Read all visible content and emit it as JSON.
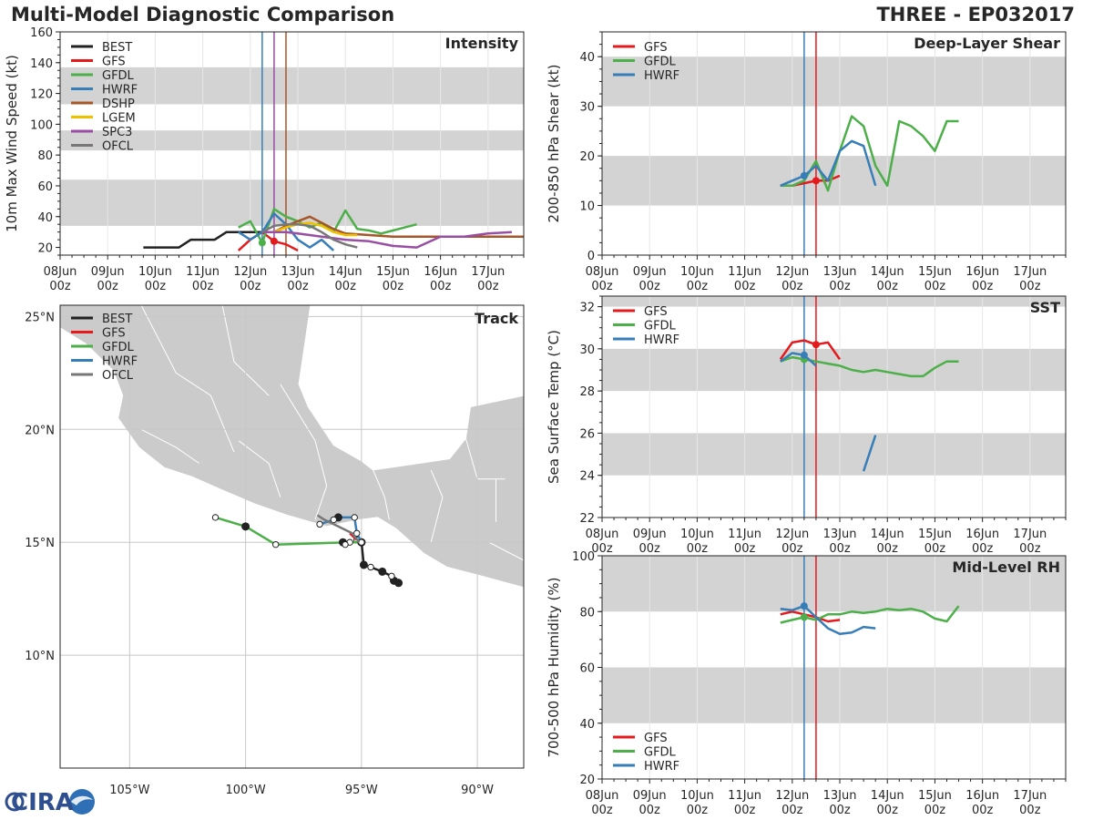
{
  "header": {
    "title": "Multi-Model Diagnostic Comparison",
    "storm_id": "THREE - EP032017"
  },
  "logo": {
    "text": "CIRA"
  },
  "colors": {
    "BEST": "#222222",
    "GFS": "#e41a1c",
    "GFDL": "#4daf4a",
    "HWRF": "#377eb8",
    "DSHP": "#a65628",
    "LGEM": "#f0c000",
    "SPC3": "#984ea3",
    "OFCL": "#777777",
    "band": "#d3d3d3",
    "land": "#cbcbcb",
    "border": "#ffffff"
  },
  "chart_data": [
    {
      "id": "intensity",
      "type": "line",
      "title": "Intensity",
      "ylabel": "10m Max Wind Speed (kt)",
      "ylim": [
        15,
        160
      ],
      "yticks": [
        "20",
        "40",
        "60",
        "80",
        "100",
        "120",
        "140",
        "160"
      ],
      "xlim": [
        0,
        9.75
      ],
      "xticks": [
        "08Jun 00z",
        "09Jun 00z",
        "10Jun 00z",
        "11Jun 00z",
        "12Jun 00z",
        "13Jun 00z",
        "14Jun 00z",
        "15Jun 00z",
        "16Jun 00z",
        "17Jun 00z"
      ],
      "bands": [
        [
          34,
          64
        ],
        [
          83,
          96
        ],
        [
          113,
          137
        ]
      ],
      "vlines": [
        {
          "x": 4.25,
          "color": "#377eb8"
        },
        {
          "x": 4.5,
          "color": "#984ea3"
        },
        {
          "x": 4.75,
          "color": "#a65628"
        }
      ],
      "legend": [
        "BEST",
        "GFS",
        "GFDL",
        "HWRF",
        "DSHP",
        "LGEM",
        "SPC3",
        "OFCL"
      ],
      "series": [
        {
          "name": "BEST",
          "x": [
            1.75,
            2,
            2.25,
            2.5,
            2.75,
            3,
            3.25,
            3.5,
            3.75,
            4,
            4.25
          ],
          "y": [
            20,
            20,
            20,
            20,
            25,
            25,
            25,
            30,
            30,
            30,
            30
          ]
        },
        {
          "name": "GFS",
          "x": [
            3.75,
            4,
            4.25,
            4.5,
            4.75,
            5
          ],
          "y": [
            18,
            25,
            30,
            24,
            22,
            18
          ],
          "marker_x": 4.5
        },
        {
          "name": "GFDL",
          "x": [
            3.75,
            4,
            4.25,
            4.5,
            4.75,
            5,
            5.25,
            5.5,
            5.75,
            6,
            6.25,
            6.5,
            6.75,
            7,
            7.25,
            7.5
          ],
          "y": [
            33,
            37,
            23,
            45,
            40,
            37,
            33,
            36,
            30,
            44,
            32,
            31,
            29,
            31,
            33,
            35
          ],
          "marker_x": 4.25
        },
        {
          "name": "HWRF",
          "x": [
            3.75,
            4,
            4.25,
            4.5,
            4.75,
            5,
            5.25,
            5.5,
            5.75
          ],
          "y": [
            30,
            25,
            30,
            42,
            35,
            25,
            20,
            25,
            18
          ]
        },
        {
          "name": "DSHP",
          "x": [
            4.5,
            4.75,
            5,
            5.25,
            5.5,
            5.75,
            6,
            6.5,
            7,
            7.5,
            8,
            8.5,
            9,
            9.75
          ],
          "y": [
            30,
            34,
            37,
            40,
            36,
            32,
            29,
            28,
            27,
            27,
            27,
            27,
            27,
            27
          ]
        },
        {
          "name": "LGEM",
          "x": [
            4.5,
            4.75,
            5,
            5.25,
            5.5,
            5.75,
            6,
            6.25
          ],
          "y": [
            30,
            33,
            35,
            36,
            34,
            30,
            28,
            28
          ]
        },
        {
          "name": "SPC3",
          "x": [
            4.25,
            4.5,
            4.75,
            5,
            5.5,
            6,
            6.5,
            7,
            7.5,
            8,
            8.5,
            9,
            9.5
          ],
          "y": [
            30,
            30,
            30,
            29,
            27,
            25,
            24,
            21,
            20,
            27,
            27,
            29,
            30
          ]
        },
        {
          "name": "OFCL",
          "x": [
            4.25,
            4.5,
            4.75,
            5,
            5.25,
            5.5,
            5.75,
            6,
            6.25
          ],
          "y": [
            30,
            34,
            35,
            35,
            34,
            30,
            25,
            22,
            20
          ]
        }
      ]
    },
    {
      "id": "shear",
      "type": "line",
      "title": "Deep-Layer Shear",
      "ylabel": "200-850 hPa Shear (kt)",
      "ylim": [
        0,
        45
      ],
      "yticks": [
        "0",
        "10",
        "20",
        "30",
        "40"
      ],
      "xlim": [
        0,
        9.75
      ],
      "xticks": [
        "08Jun 00z",
        "09Jun 00z",
        "10Jun 00z",
        "11Jun 00z",
        "12Jun 00z",
        "13Jun 00z",
        "14Jun 00z",
        "15Jun 00z",
        "16Jun 00z",
        "17Jun 00z"
      ],
      "bands": [
        [
          10,
          20
        ],
        [
          30,
          40
        ]
      ],
      "vlines": [
        {
          "x": 4.25,
          "color": "#377eb8"
        },
        {
          "x": 4.5,
          "color": "#e41a1c"
        }
      ],
      "legend": [
        "GFS",
        "GFDL",
        "HWRF"
      ],
      "series": [
        {
          "name": "GFS",
          "x": [
            3.75,
            4,
            4.25,
            4.5,
            4.75,
            5
          ],
          "y": [
            14,
            14,
            14.5,
            15,
            15,
            16
          ],
          "marker_x": 4.5
        },
        {
          "name": "GFDL",
          "x": [
            3.75,
            4,
            4.25,
            4.5,
            4.75,
            5,
            5.25,
            5.5,
            5.75,
            6,
            6.25,
            6.5,
            6.75,
            7,
            7.25,
            7.5
          ],
          "y": [
            14,
            14,
            15,
            19,
            13,
            21,
            28,
            26,
            18,
            14,
            27,
            26,
            24,
            21,
            27,
            27
          ]
        },
        {
          "name": "HWRF",
          "x": [
            3.75,
            4,
            4.25,
            4.5,
            4.75,
            5,
            5.25,
            5.5,
            5.75
          ],
          "y": [
            14,
            15,
            16,
            18,
            15,
            21,
            23,
            22,
            14
          ],
          "marker_x": 4.25
        }
      ]
    },
    {
      "id": "sst",
      "type": "line",
      "title": "SST",
      "ylabel": "Sea Surface Temp (°C)",
      "ylim": [
        22,
        32.5
      ],
      "yticks": [
        "22",
        "24",
        "26",
        "28",
        "30",
        "32"
      ],
      "xlim": [
        0,
        9.75
      ],
      "xticks": [
        "08Jun 00z",
        "09Jun 00z",
        "10Jun 00z",
        "11Jun 00z",
        "12Jun 00z",
        "13Jun 00z",
        "14Jun 00z",
        "15Jun 00z",
        "16Jun 00z",
        "17Jun 00z"
      ],
      "bands": [
        [
          24,
          26
        ],
        [
          28,
          30
        ],
        [
          32,
          32.5
        ]
      ],
      "vlines": [
        {
          "x": 4.25,
          "color": "#377eb8"
        },
        {
          "x": 4.5,
          "color": "#e41a1c"
        }
      ],
      "legend": [
        "GFS",
        "GFDL",
        "HWRF"
      ],
      "series": [
        {
          "name": "GFS",
          "x": [
            3.75,
            4,
            4.25,
            4.5,
            4.75,
            5
          ],
          "y": [
            29.5,
            30.3,
            30.4,
            30.2,
            30.3,
            29.5
          ],
          "marker_x": 4.5
        },
        {
          "name": "GFDL",
          "x": [
            3.75,
            4,
            4.25,
            4.5,
            4.75,
            5,
            5.25,
            5.5,
            5.75,
            6,
            6.25,
            6.5,
            6.75,
            7,
            7.25,
            7.5
          ],
          "y": [
            29.4,
            29.6,
            29.5,
            29.4,
            29.3,
            29.2,
            29.0,
            28.9,
            29.0,
            28.9,
            28.8,
            28.7,
            28.7,
            29.1,
            29.4,
            29.4
          ],
          "marker_x": 4.25
        },
        {
          "name": "HWRF",
          "x": [
            3.75,
            4,
            4.25,
            4.5
          ],
          "y": [
            29.4,
            29.8,
            29.7,
            29.2
          ],
          "marker_x": 4.25
        },
        {
          "name": "HWRF",
          "x": [
            5.5,
            5.75
          ],
          "y": [
            24.2,
            25.9
          ]
        }
      ]
    },
    {
      "id": "rh",
      "type": "line",
      "title": "Mid-Level RH",
      "ylabel": "700-500 hPa Humidity (%)",
      "ylim": [
        20,
        100
      ],
      "yticks": [
        "20",
        "40",
        "60",
        "80",
        "100"
      ],
      "xlim": [
        0,
        9.75
      ],
      "xticks": [
        "08Jun 00z",
        "09Jun 00z",
        "10Jun 00z",
        "11Jun 00z",
        "12Jun 00z",
        "13Jun 00z",
        "14Jun 00z",
        "15Jun 00z",
        "16Jun 00z",
        "17Jun 00z"
      ],
      "bands": [
        [
          40,
          60
        ],
        [
          80,
          100
        ]
      ],
      "vlines": [
        {
          "x": 4.25,
          "color": "#377eb8"
        },
        {
          "x": 4.5,
          "color": "#e41a1c"
        }
      ],
      "legend": [
        "GFS",
        "GFDL",
        "HWRF"
      ],
      "series": [
        {
          "name": "GFS",
          "x": [
            3.75,
            4,
            4.25,
            4.5,
            4.75,
            5
          ],
          "y": [
            79,
            80,
            79,
            78,
            76.5,
            77
          ]
        },
        {
          "name": "GFDL",
          "x": [
            3.75,
            4,
            4.25,
            4.5,
            4.75,
            5,
            5.25,
            5.5,
            5.75,
            6,
            6.25,
            6.5,
            6.75,
            7,
            7.25,
            7.5
          ],
          "y": [
            76,
            77,
            78,
            77,
            79,
            79,
            80,
            79.5,
            80,
            81,
            80.5,
            81,
            80,
            77.5,
            76.5,
            82
          ],
          "marker_x": 4.25
        },
        {
          "name": "HWRF",
          "x": [
            3.75,
            4,
            4.25,
            4.5,
            4.75,
            5,
            5.25,
            5.5,
            5.75
          ],
          "y": [
            81,
            80.5,
            82,
            78,
            74,
            72,
            72.5,
            74.5,
            74
          ],
          "marker_x": 4.25
        }
      ]
    },
    {
      "id": "track",
      "type": "scatter",
      "title": "Track",
      "xlim": [
        -108,
        -88
      ],
      "ylim": [
        5,
        25.5
      ],
      "xticks": [
        "105°W",
        "100°W",
        "95°W",
        "90°W"
      ],
      "xtick_vals": [
        -105,
        -100,
        -95,
        -90
      ],
      "yticks": [
        "10°N",
        "15°N",
        "20°N",
        "25°N"
      ],
      "ytick_vals": [
        10,
        15,
        20,
        25
      ],
      "legend": [
        "BEST",
        "GFS",
        "GFDL",
        "HWRF",
        "OFCL"
      ],
      "series": [
        {
          "name": "BEST",
          "lon": [
            -93.4,
            -93.6,
            -93.7,
            -94.1,
            -94.6,
            -94.9,
            -95.0,
            -95.0,
            -95.2
          ],
          "lat": [
            13.2,
            13.3,
            13.5,
            13.7,
            13.9,
            14.0,
            15.0,
            15.0,
            15.1
          ],
          "filled": [
            true,
            true,
            false,
            true,
            false,
            true,
            false,
            true,
            false
          ]
        },
        {
          "name": "GFS",
          "lon": [
            -95.2,
            -95.3,
            -95.4,
            -95.5
          ],
          "lat": [
            15.1,
            15.2,
            15.3,
            15.4
          ]
        },
        {
          "name": "GFDL",
          "lon": [
            -95.0,
            -95.5,
            -98.7,
            -100.0,
            -101.3
          ],
          "lat": [
            15.0,
            15.0,
            14.9,
            15.7,
            16.1
          ],
          "filled": [
            true,
            false,
            false,
            true,
            false
          ]
        },
        {
          "name": "HWRF",
          "lon": [
            -95.0,
            -95.2,
            -95.3,
            -96.0,
            -96.2,
            -96.8
          ],
          "lat": [
            15.0,
            15.4,
            16.1,
            16.1,
            16.0,
            15.8
          ],
          "filled": [
            false,
            false,
            false,
            true,
            false,
            false
          ]
        },
        {
          "name": "OFCL",
          "lon": [
            -95.1,
            -95.4,
            -96.0,
            -96.6,
            -96.9
          ],
          "lat": [
            15.0,
            15.4,
            15.7,
            16.0,
            16.2
          ]
        },
        {
          "name": "BEST",
          "lon": [
            -95.8,
            -95.7
          ],
          "lat": [
            15.0,
            14.9
          ],
          "filled": [
            true,
            false
          ]
        }
      ]
    }
  ]
}
